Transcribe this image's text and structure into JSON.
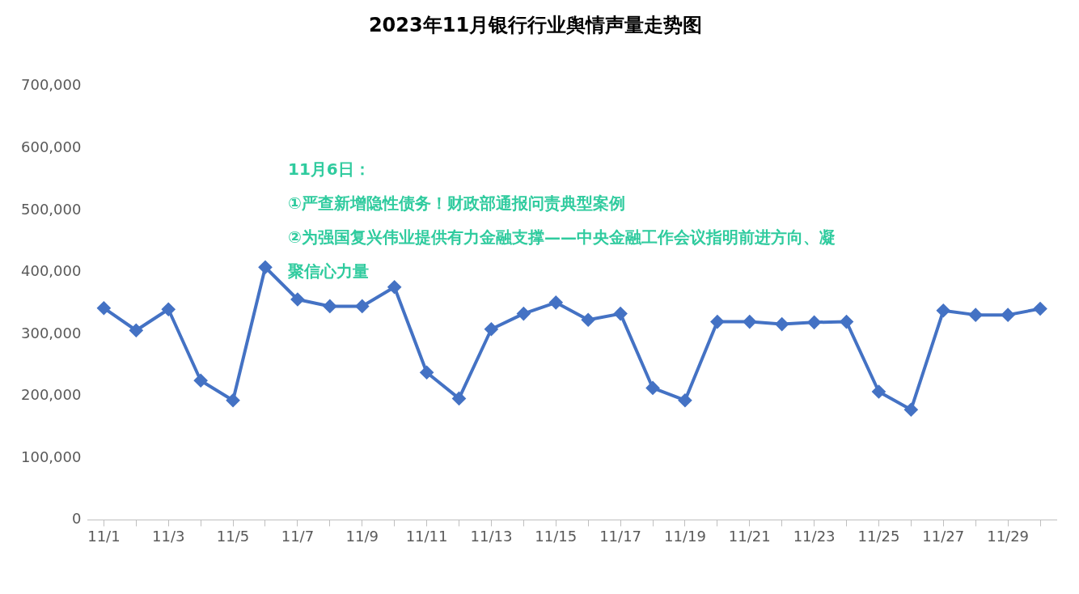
{
  "chart_data": {
    "type": "line",
    "title": "2023年11月银行行业舆情声量走势图",
    "categories": [
      "11/1",
      null,
      "11/3",
      null,
      "11/5",
      null,
      "11/7",
      null,
      "11/9",
      null,
      "11/11",
      null,
      "11/13",
      null,
      "11/15",
      null,
      "11/17",
      null,
      "11/19",
      null,
      "11/21",
      null,
      "11/23",
      null,
      "11/25",
      null,
      "11/27",
      null,
      "11/29",
      null
    ],
    "series": [
      {
        "color": "#4472c4",
        "values": [
          342000,
          306000,
          340000,
          225000,
          193000,
          408000,
          356000,
          345000,
          345000,
          376000,
          238000,
          196000,
          308000,
          333000,
          351000,
          323000,
          333000,
          213000,
          193000,
          320000,
          320000,
          316000,
          319000,
          320000,
          207000,
          178000,
          338000,
          331000,
          331000,
          341000
        ]
      }
    ],
    "ylim": [
      0,
      700000
    ],
    "yticks": [
      0,
      {
        "value": 100000,
        "label": "100,000"
      },
      {
        "value": 200000,
        "label": "200,000"
      },
      {
        "value": 300000,
        "label": "300,000"
      },
      {
        "value": 400000,
        "label": "400,000"
      },
      {
        "value": 500000,
        "label": "500,000"
      },
      {
        "value": 600000,
        "label": "600,000"
      },
      {
        "value": 700000,
        "label": "700,000"
      }
    ],
    "annotations": [
      "11月6日：",
      "①严查新增隐性债务！财政部通报问责典型案例",
      "②为强国复兴伟业提供有力金融支撑——中央金融工作会议指明前进方向、凝聚信心力量"
    ],
    "grid": false,
    "legend": false,
    "marker": "diamond",
    "line_style": "solid"
  }
}
